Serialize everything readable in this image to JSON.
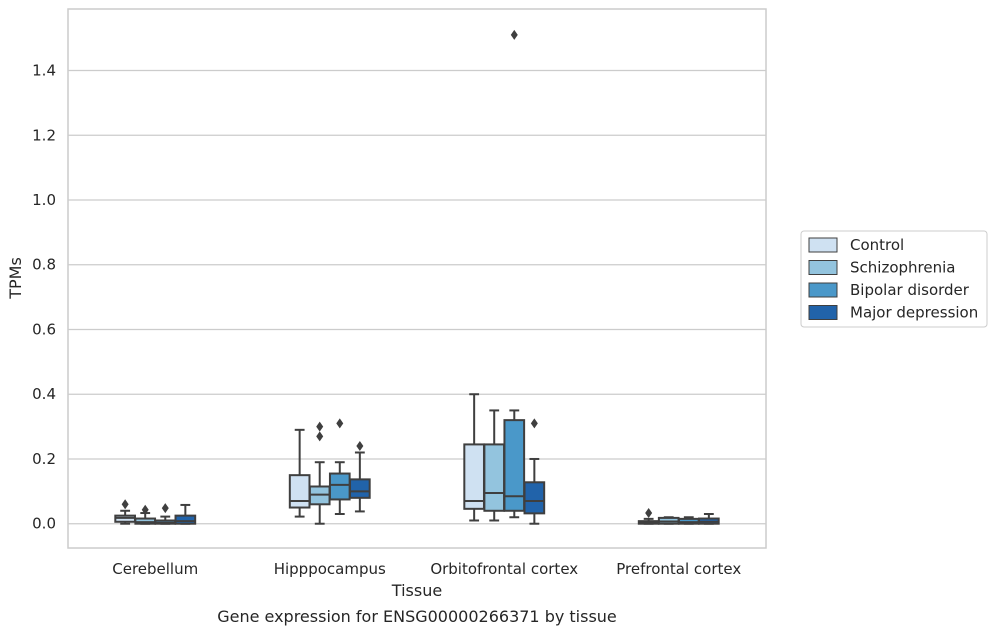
{
  "chart_data": {
    "type": "box",
    "title": "",
    "caption": "Gene expression for ENSG00000266371 by tissue",
    "xlabel": "Tissue",
    "ylabel": "TPMs",
    "ylim": [
      -0.075,
      1.59
    ],
    "yticks": [
      0.0,
      0.2,
      0.4,
      0.6,
      0.8,
      1.0,
      1.2,
      1.4
    ],
    "ytick_labels": [
      "0.0",
      "0.2",
      "0.4",
      "0.6",
      "0.8",
      "1.0",
      "1.2",
      "1.4"
    ],
    "grid": "horizontal",
    "legend_position": "right",
    "categories": [
      "Cerebellum",
      "Hipppocampus",
      "Orbitofrontal cortex",
      "Prefrontal cortex"
    ],
    "series": [
      {
        "name": "Control",
        "color": "#cfe1f2",
        "boxes": [
          {
            "whislo": 0.0,
            "q1": 0.006,
            "med": 0.018,
            "q3": 0.025,
            "whishi": 0.04,
            "fliers": [
              0.06
            ]
          },
          {
            "whislo": 0.022,
            "q1": 0.05,
            "med": 0.07,
            "q3": 0.15,
            "whishi": 0.29,
            "fliers": []
          },
          {
            "whislo": 0.01,
            "q1": 0.046,
            "med": 0.07,
            "q3": 0.245,
            "whishi": 0.4,
            "fliers": []
          },
          {
            "whislo": 0.0,
            "q1": 0.0,
            "med": 0.003,
            "q3": 0.008,
            "whishi": 0.015,
            "fliers": [
              0.033
            ]
          }
        ]
      },
      {
        "name": "Schizophrenia",
        "color": "#93c4de",
        "boxes": [
          {
            "whislo": 0.0,
            "q1": 0.0,
            "med": 0.005,
            "q3": 0.016,
            "whishi": 0.033,
            "fliers": [
              0.043
            ]
          },
          {
            "whislo": 0.0,
            "q1": 0.06,
            "med": 0.09,
            "q3": 0.115,
            "whishi": 0.19,
            "fliers": [
              0.27,
              0.3
            ]
          },
          {
            "whislo": 0.01,
            "q1": 0.04,
            "med": 0.095,
            "q3": 0.245,
            "whishi": 0.35,
            "fliers": []
          },
          {
            "whislo": 0.0,
            "q1": 0.0,
            "med": 0.007,
            "q3": 0.018,
            "whishi": 0.02,
            "fliers": []
          }
        ]
      },
      {
        "name": "Bipolar disorder",
        "color": "#4a98c9",
        "boxes": [
          {
            "whislo": 0.0,
            "q1": 0.0,
            "med": 0.003,
            "q3": 0.01,
            "whishi": 0.022,
            "fliers": [
              0.048
            ]
          },
          {
            "whislo": 0.03,
            "q1": 0.075,
            "med": 0.12,
            "q3": 0.155,
            "whishi": 0.19,
            "fliers": [
              0.31
            ]
          },
          {
            "whislo": 0.02,
            "q1": 0.04,
            "med": 0.085,
            "q3": 0.32,
            "whishi": 0.35,
            "fliers": [
              1.51
            ]
          },
          {
            "whislo": 0.0,
            "q1": 0.0,
            "med": 0.005,
            "q3": 0.015,
            "whishi": 0.02,
            "fliers": []
          }
        ]
      },
      {
        "name": "Major depression",
        "color": "#2163aa",
        "boxes": [
          {
            "whislo": 0.0,
            "q1": 0.0,
            "med": 0.008,
            "q3": 0.025,
            "whishi": 0.058,
            "fliers": []
          },
          {
            "whislo": 0.038,
            "q1": 0.08,
            "med": 0.1,
            "q3": 0.137,
            "whishi": 0.22,
            "fliers": [
              0.24
            ]
          },
          {
            "whislo": 0.0,
            "q1": 0.032,
            "med": 0.07,
            "q3": 0.128,
            "whishi": 0.2,
            "fliers": [
              0.31
            ]
          },
          {
            "whislo": 0.0,
            "q1": 0.0,
            "med": 0.006,
            "q3": 0.016,
            "whishi": 0.03,
            "fliers": []
          }
        ]
      }
    ]
  }
}
